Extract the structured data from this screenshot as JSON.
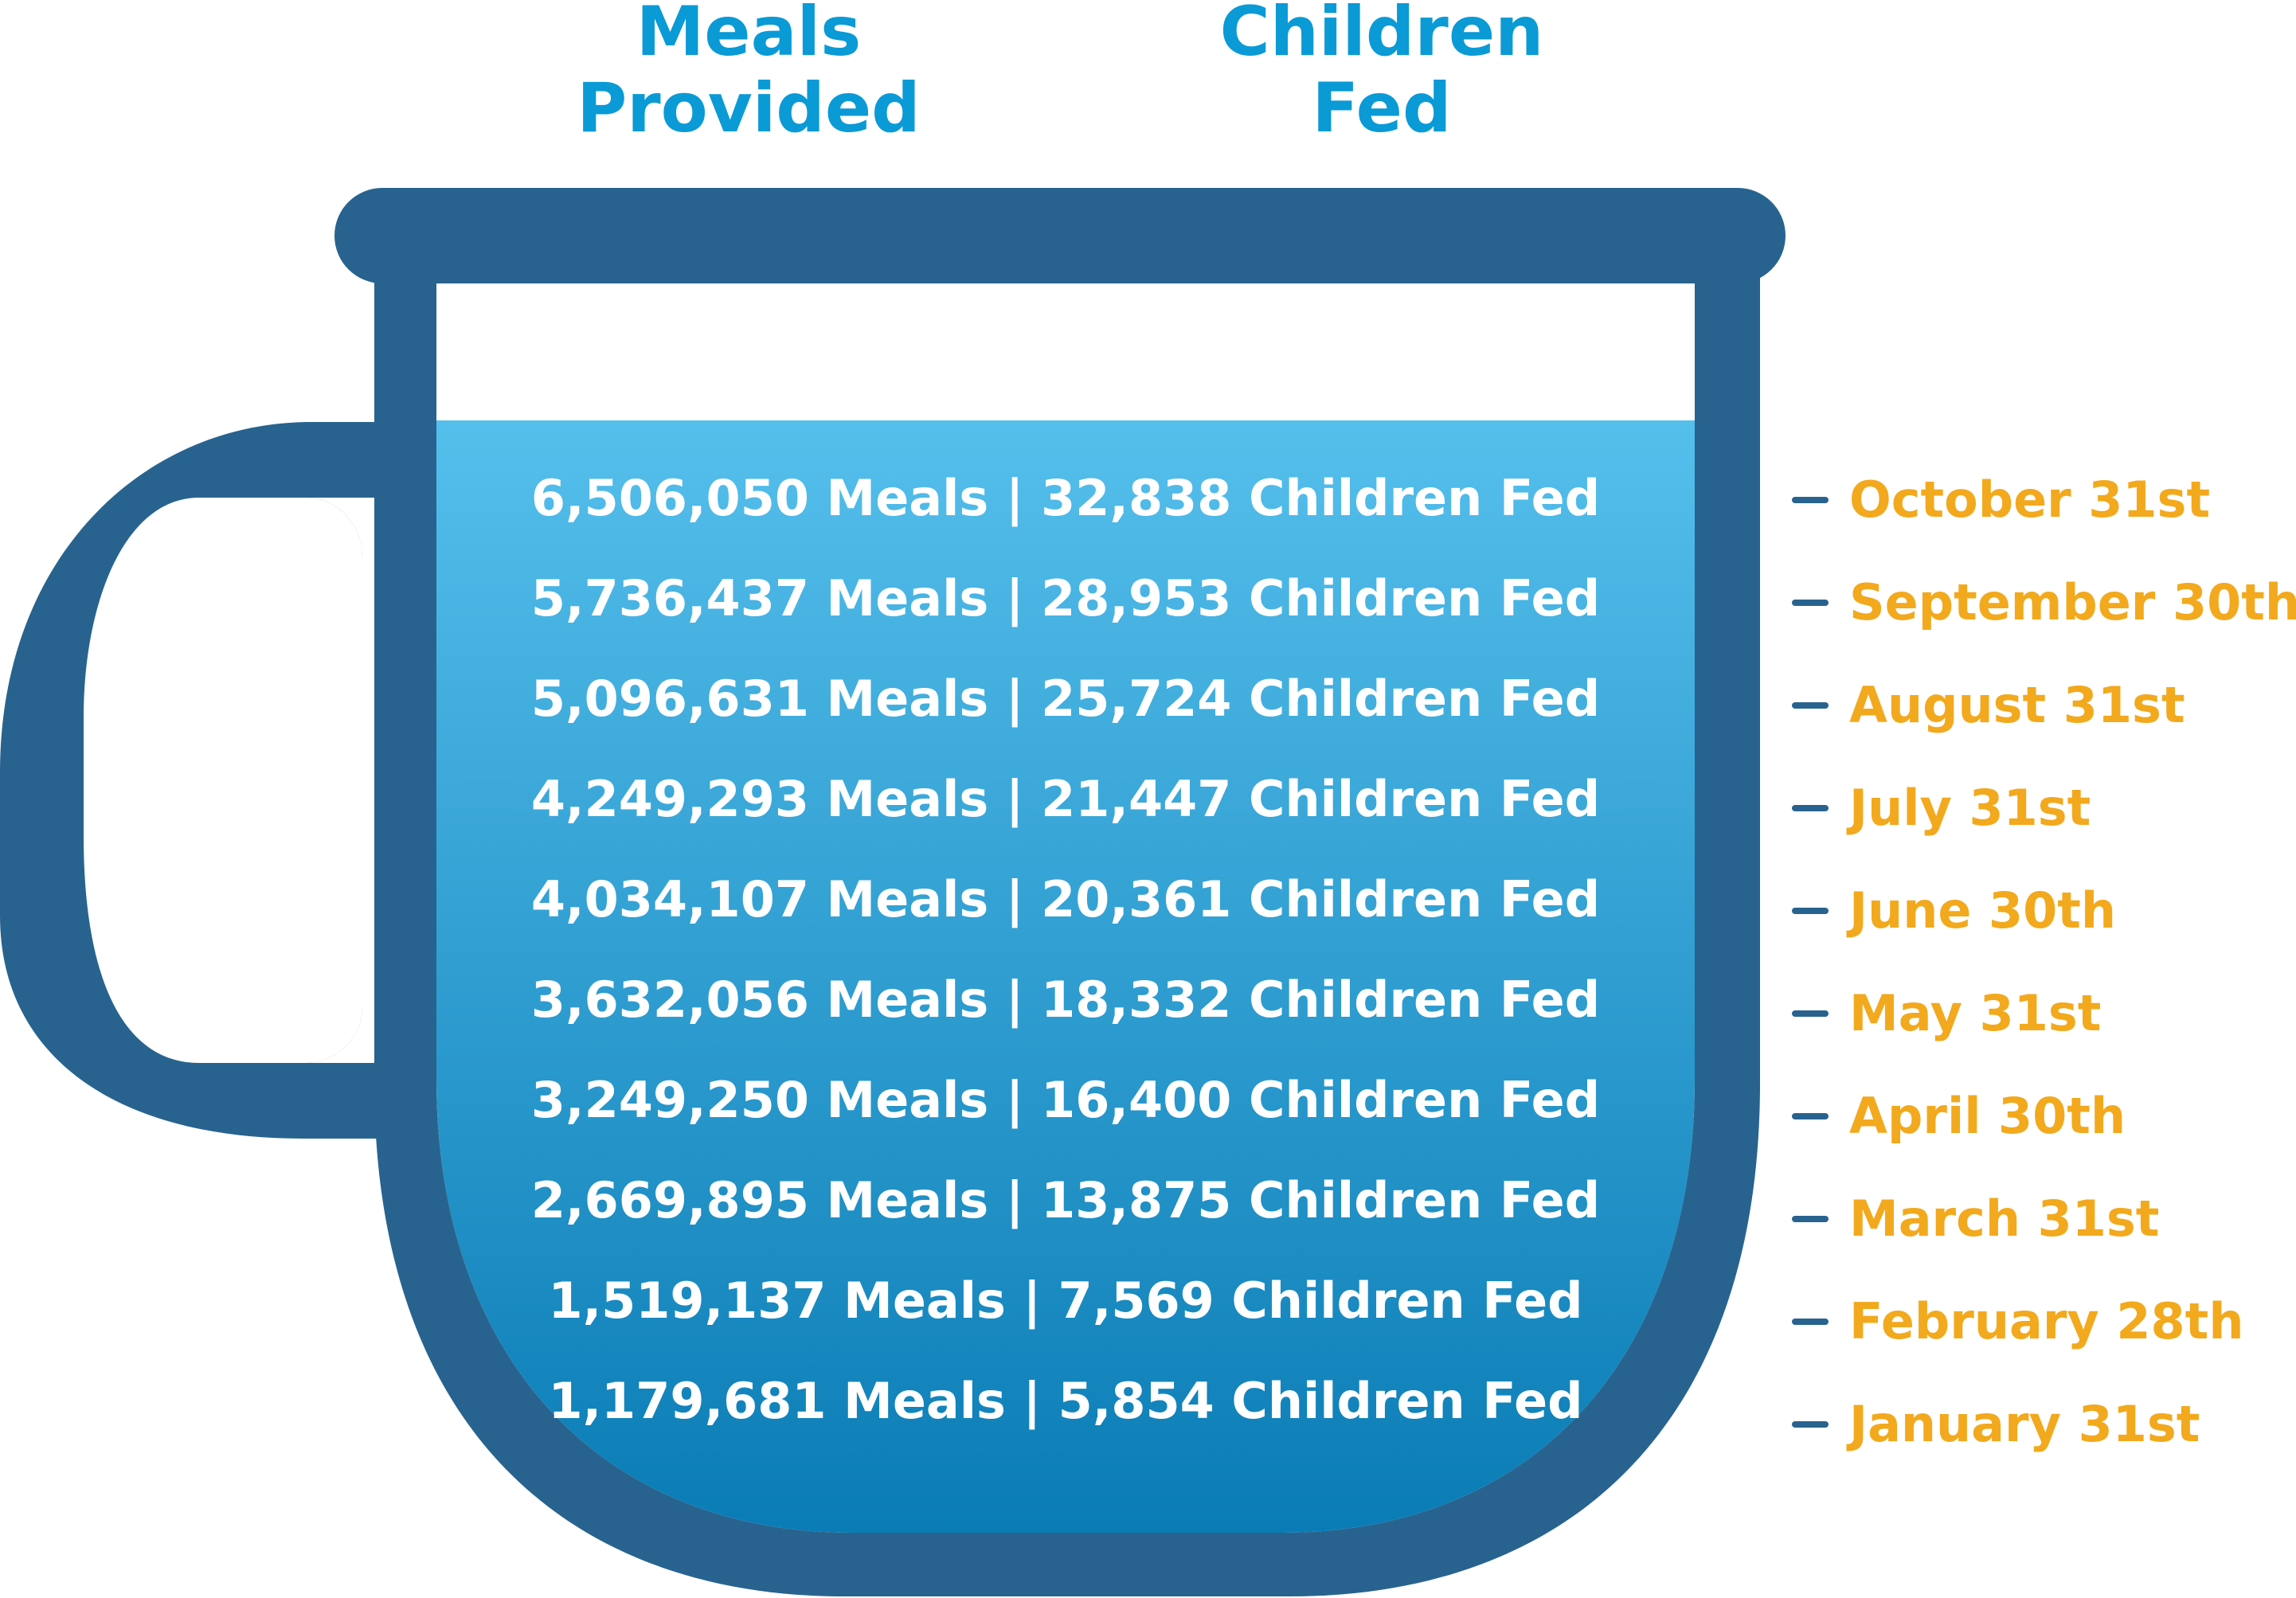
{
  "headers": {
    "meals": [
      "Meals",
      "Provided"
    ],
    "children": [
      "Children",
      "Fed"
    ]
  },
  "colors": {
    "mug": "#28638f",
    "liquid_top": "#55bfec",
    "liquid_bottom": "#0a7cb5",
    "header": "#0a9ad6",
    "dates": "#f2a91d",
    "row_text": "#ffffff"
  },
  "rows": [
    {
      "meals": "6,506,050",
      "children": "32,838",
      "text": "6,506,050 Meals | 32,838 Children Fed"
    },
    {
      "meals": "5,736,437",
      "children": "28,953",
      "text": "5,736,437 Meals | 28,953 Children Fed"
    },
    {
      "meals": "5,096,631",
      "children": "25,724",
      "text": "5,096,631 Meals | 25,724 Children Fed"
    },
    {
      "meals": "4,249,293",
      "children": "21,447",
      "text": "4,249,293 Meals | 21,447 Children Fed"
    },
    {
      "meals": "4,034,107",
      "children": "20,361",
      "text": "4,034,107 Meals | 20,361 Children Fed"
    },
    {
      "meals": "3,632,056",
      "children": "18,332",
      "text": "3,632,056 Meals | 18,332 Children Fed"
    },
    {
      "meals": "3,249,250",
      "children": "16,400",
      "text": "3,249,250 Meals | 16,400 Children Fed"
    },
    {
      "meals": "2,669,895",
      "children": "13,875",
      "text": "2,669,895 Meals | 13,875 Children Fed"
    },
    {
      "meals": "1,519,137",
      "children": "7,569",
      "text": "1,519,137 Meals | 7,569 Children Fed"
    },
    {
      "meals": "1,179,681",
      "children": "5,854",
      "text": "1,179,681 Meals | 5,854 Children Fed"
    }
  ],
  "dates": [
    "October 31st",
    "September 30th",
    "August 31st",
    "July 31st",
    "June 30th",
    "May 31st",
    "April 30th",
    "March 31st",
    "February 28th",
    "January 31st"
  ]
}
